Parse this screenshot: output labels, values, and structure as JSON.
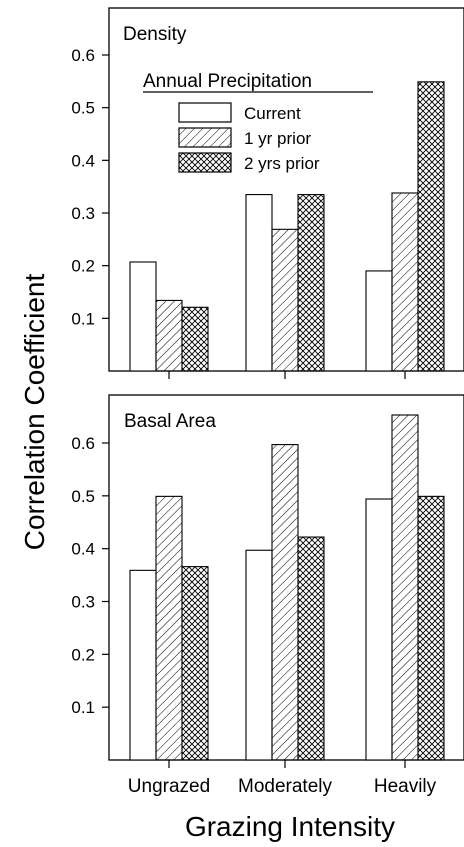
{
  "chart_data": {
    "type": "bar",
    "shared": {
      "ylabel": "Correlation Coefficient",
      "xlabel": "Grazing Intensity",
      "categories": [
        "Ungrazed",
        "Moderately",
        "Heavily"
      ],
      "legend": {
        "title": "Annual Precipitation",
        "placement": "top-center of upper panel",
        "entries": [
          {
            "name": "Current",
            "pattern": "none"
          },
          {
            "name": "1 yr prior",
            "pattern": "diagonal-hatch"
          },
          {
            "name": "2 yrs prior",
            "pattern": "cross-hatch"
          }
        ]
      },
      "series": [
        {
          "name": "Current",
          "pattern": "none"
        },
        {
          "name": "1 yr prior",
          "pattern": "diagonal-hatch"
        },
        {
          "name": "2 yrs prior",
          "pattern": "cross-hatch"
        }
      ],
      "grid": false
    },
    "panels": [
      {
        "title": "Density",
        "ylim": [
          0,
          0.68
        ],
        "yticks": [
          0.1,
          0.2,
          0.3,
          0.4,
          0.5,
          0.6
        ],
        "ytick_labels": [
          "0.1",
          "0.2",
          "0.3",
          "0.4",
          "0.5",
          "0.6"
        ],
        "values": [
          [
            0.207,
            0.134,
            0.121
          ],
          [
            0.335,
            0.269,
            0.335
          ],
          [
            0.19,
            0.338,
            0.549
          ]
        ]
      },
      {
        "title": "Basal Area",
        "ylim": [
          0,
          0.68
        ],
        "yticks": [
          0.1,
          0.2,
          0.3,
          0.4,
          0.5,
          0.6
        ],
        "ytick_labels": [
          "0.1",
          "0.2",
          "0.3",
          "0.4",
          "0.5",
          "0.6"
        ],
        "values": [
          [
            0.359,
            0.499,
            0.366
          ],
          [
            0.397,
            0.597,
            0.422
          ],
          [
            0.494,
            0.653,
            0.499
          ]
        ]
      }
    ]
  },
  "colors": {
    "ink": "#000000",
    "background": "#ffffff"
  }
}
